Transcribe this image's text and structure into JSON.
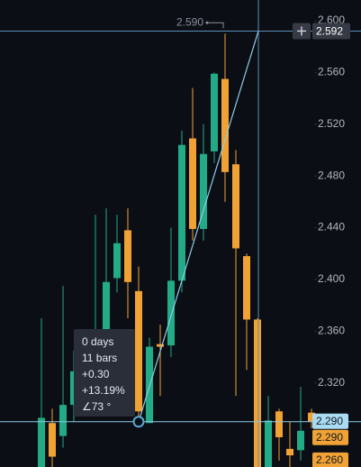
{
  "chart_data": {
    "type": "candlestick",
    "up_color": "#22ab86",
    "down_color": "#f0a235",
    "open": [
      2.255,
      2.289,
      2.279,
      2.303,
      2.31,
      2.33,
      2.361,
      2.401,
      2.438,
      2.391,
      2.289,
      2.35,
      2.349,
      2.399,
      2.509,
      2.439,
      2.499,
      2.555,
      2.489,
      2.418,
      2.369,
      2.254,
      2.298,
      2.269,
      2.268,
      2.297
    ],
    "high": [
      2.37,
      2.3,
      2.395,
      2.345,
      2.345,
      2.45,
      2.455,
      2.45,
      2.455,
      2.41,
      2.355,
      2.365,
      2.44,
      2.515,
      2.548,
      2.52,
      2.56,
      2.59,
      2.5,
      2.42,
      2.37,
      2.31,
      2.3,
      2.29,
      2.317,
      2.3
    ],
    "low": [
      2.254,
      2.254,
      2.27,
      2.29,
      2.3,
      2.32,
      2.35,
      2.39,
      2.37,
      2.29,
      2.289,
      2.31,
      2.34,
      2.39,
      2.43,
      2.43,
      2.49,
      2.46,
      2.31,
      2.33,
      2.25,
      2.25,
      2.26,
      2.25,
      2.26,
      2.285
    ],
    "close": [
      2.293,
      2.263,
      2.303,
      2.329,
      2.33,
      2.36,
      2.398,
      2.428,
      2.398,
      2.298,
      2.348,
      2.348,
      2.399,
      2.504,
      2.439,
      2.497,
      2.559,
      2.483,
      2.424,
      2.369,
      2.254,
      2.291,
      2.278,
      2.264,
      2.283,
      2.29
    ],
    "ylim": [
      2.255,
      2.616
    ],
    "yticks": [
      {
        "value": 2.6,
        "label": "2.600"
      },
      {
        "value": 2.56,
        "label": "2.560"
      },
      {
        "value": 2.52,
        "label": "2.520"
      },
      {
        "value": 2.48,
        "label": "2.480"
      },
      {
        "value": 2.44,
        "label": "2.440"
      },
      {
        "value": 2.4,
        "label": "2.400"
      },
      {
        "value": 2.36,
        "label": "2.360"
      },
      {
        "value": 2.32,
        "label": "2.320"
      }
    ],
    "crosshair": {
      "value": 2.592,
      "label": "2.592"
    },
    "marker_label": {
      "value": 2.59,
      "label": "2.590"
    },
    "price_labels": [
      {
        "value": 2.29,
        "label": "2.290"
      },
      {
        "value": 2.29,
        "label": "2.290"
      },
      {
        "value": 2.26,
        "label": "2.260"
      }
    ],
    "tooltip": [
      "0 days",
      "11 bars",
      "+0.30",
      "+13.19%",
      "∠73 °"
    ]
  }
}
